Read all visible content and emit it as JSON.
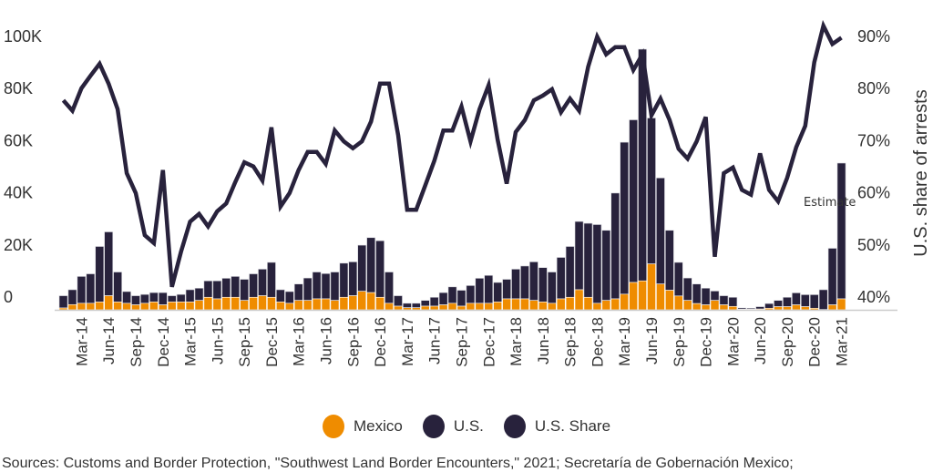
{
  "colors": {
    "mexico": "#EF8C00",
    "us": "#28223C",
    "share": "#28223C",
    "axis_text": "#333333"
  },
  "chart_data": {
    "type": "bar",
    "stacked": true,
    "secondary_type": "line",
    "x": [
      "Jan-14",
      "Feb-14",
      "Mar-14",
      "Apr-14",
      "May-14",
      "Jun-14",
      "Jul-14",
      "Aug-14",
      "Sep-14",
      "Oct-14",
      "Nov-14",
      "Dec-14",
      "Jan-15",
      "Feb-15",
      "Mar-15",
      "Apr-15",
      "May-15",
      "Jun-15",
      "Jul-15",
      "Aug-15",
      "Sep-15",
      "Oct-15",
      "Nov-15",
      "Dec-15",
      "Jan-16",
      "Feb-16",
      "Mar-16",
      "Apr-16",
      "May-16",
      "Jun-16",
      "Jul-16",
      "Aug-16",
      "Sep-16",
      "Oct-16",
      "Nov-16",
      "Dec-16",
      "Jan-17",
      "Feb-17",
      "Mar-17",
      "Apr-17",
      "May-17",
      "Jun-17",
      "Jul-17",
      "Aug-17",
      "Sep-17",
      "Oct-17",
      "Nov-17",
      "Dec-17",
      "Jan-18",
      "Feb-18",
      "Mar-18",
      "Apr-18",
      "May-18",
      "Jun-18",
      "Jul-18",
      "Aug-18",
      "Sep-18",
      "Oct-18",
      "Nov-18",
      "Dec-18",
      "Jan-19",
      "Feb-19",
      "Mar-19",
      "Apr-19",
      "May-19",
      "Jun-19",
      "Jul-19",
      "Aug-19",
      "Sep-19",
      "Oct-19",
      "Nov-19",
      "Dec-19",
      "Jan-20",
      "Feb-20",
      "Mar-20",
      "Apr-20",
      "May-20",
      "Jun-20",
      "Jul-20",
      "Aug-20",
      "Sep-20",
      "Oct-20",
      "Nov-20",
      "Dec-20",
      "Jan-21",
      "Feb-21",
      "Mar-21"
    ],
    "x_tick_labels": [
      "Mar-14",
      "Jun-14",
      "Sep-14",
      "Dec-14",
      "Mar-15",
      "Jun-15",
      "Sep-15",
      "Dec-15",
      "Mar-16",
      "Jun-16",
      "Sep-16",
      "Dec-16",
      "Mar-17",
      "Jun-17",
      "Sep-17",
      "Dec-17",
      "Mar-18",
      "Jun-18",
      "Sep-18",
      "Dec-18",
      "Mar-19",
      "Jun-19",
      "Sep-19",
      "Dec-19",
      "Mar-20",
      "Jun-20",
      "Sep-20",
      "Dec-20",
      "Mar-21"
    ],
    "series": [
      {
        "name": "Mexico",
        "axis": "left",
        "values": [
          700,
          2000,
          2500,
          2500,
          3000,
          5400,
          3000,
          2500,
          1900,
          2500,
          3000,
          1900,
          3000,
          3000,
          3000,
          3600,
          4800,
          4200,
          4800,
          4800,
          3600,
          4800,
          5400,
          4800,
          3000,
          2500,
          3600,
          3600,
          4200,
          4200,
          3600,
          4800,
          5400,
          7100,
          6600,
          4800,
          2500,
          1400,
          800,
          800,
          1400,
          1400,
          1900,
          2500,
          1400,
          2500,
          2500,
          2500,
          3000,
          4200,
          4200,
          4200,
          3600,
          3000,
          2500,
          4200,
          4800,
          7700,
          4800,
          2500,
          3600,
          4200,
          6000,
          10500,
          11100,
          17600,
          9900,
          7500,
          5300,
          3600,
          2400,
          1900,
          3600,
          1900,
          1300,
          200,
          200,
          300,
          600,
          1200,
          1200,
          1900,
          1200,
          600,
          100,
          1900,
          4200
        ]
      },
      {
        "name": "U.S.",
        "axis": "left",
        "values": [
          4700,
          5700,
          10300,
          11300,
          21300,
          24500,
          11500,
          4500,
          3500,
          3400,
          3600,
          4700,
          2400,
          2900,
          4700,
          4700,
          6300,
          6900,
          7300,
          8000,
          8100,
          9000,
          10200,
          13400,
          4700,
          4500,
          6300,
          8600,
          10300,
          9700,
          10900,
          13100,
          13000,
          17700,
          21100,
          21700,
          12000,
          4000,
          1700,
          1700,
          2200,
          3400,
          4700,
          6300,
          6100,
          6800,
          9600,
          10700,
          7500,
          7500,
          11400,
          12600,
          14800,
          13200,
          12000,
          15900,
          19500,
          26200,
          28400,
          30200,
          26900,
          40600,
          58300,
          62400,
          88900,
          56000,
          40700,
          23000,
          12900,
          8600,
          7500,
          6400,
          3600,
          3500,
          3500,
          500,
          400,
          900,
          1800,
          2400,
          3600,
          4600,
          4600,
          5200,
          7600,
          21700,
          52100
        ]
      },
      {
        "name": "U.S. Share",
        "axis": "right",
        "type": "line",
        "values": [
          80.2,
          78.2,
          82.5,
          84.9,
          87.2,
          83.4,
          78.5,
          66.2,
          62.4,
          54.3,
          52.8,
          66.8,
          44.4,
          51.1,
          56.9,
          58.4,
          56.0,
          58.9,
          60.4,
          64.5,
          68.3,
          67.5,
          64.8,
          75.0,
          59.8,
          62.4,
          66.8,
          70.3,
          70.3,
          68.0,
          74.4,
          72.3,
          71.0,
          72.3,
          76.1,
          83.4,
          83.4,
          73.5,
          59.2,
          59.2,
          63.9,
          68.6,
          74.4,
          74.4,
          79.0,
          72.3,
          78.5,
          83.1,
          72.6,
          64.2,
          74.1,
          76.4,
          80.2,
          81.1,
          82.3,
          77.9,
          80.5,
          78.2,
          86.6,
          92.4,
          89.0,
          90.4,
          90.4,
          86.0,
          89.0,
          77.3,
          80.5,
          76.4,
          70.9,
          69.0,
          72.3,
          77.0,
          50.2,
          66.2,
          67.3,
          63.0,
          62.1,
          70.0,
          63.0,
          60.8,
          65.3,
          71.2,
          75.3,
          87.5,
          94.5,
          91.0,
          92.2
        ]
      }
    ],
    "y_left": {
      "ticks": [
        0,
        20000,
        40000,
        60000,
        80000,
        100000
      ],
      "tick_labels": [
        "0",
        "20K",
        "40K",
        "60K",
        "80K",
        "100K"
      ],
      "range": [
        0,
        100000
      ],
      "label": ""
    },
    "y_right": {
      "ticks": [
        40,
        50,
        60,
        70,
        80,
        90
      ],
      "tick_labels": [
        "40%",
        "50%",
        "60%",
        "70%",
        "80%",
        "90%"
      ],
      "range": [
        40,
        90
      ],
      "label": "U.S. share of arrests"
    },
    "annotations": [
      {
        "text": "Estimate",
        "x": "Mar-21"
      }
    ],
    "grid": false,
    "legend_placement": "bottom"
  },
  "legend": [
    {
      "label": "Mexico",
      "color": "#EF8C00"
    },
    {
      "label": "U.S.",
      "color": "#28223C"
    },
    {
      "label": "U.S. Share",
      "color": "#28223C"
    }
  ],
  "source": "Sources: Customs and Border Protection, \"Southwest Land Border Encounters,\" 2021; Secretaría de Gobernación Mexico;"
}
